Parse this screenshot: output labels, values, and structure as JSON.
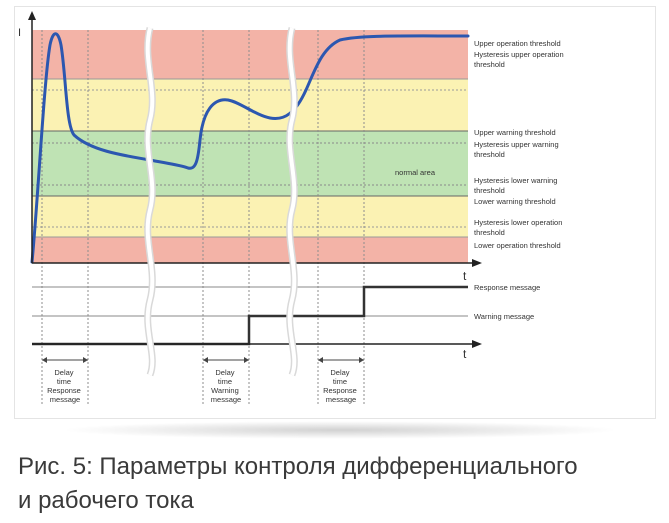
{
  "colors": {
    "operation_zone": "#f3b3a7",
    "warning_zone": "#fbf2b3",
    "normal_zone": "#bfe3b4",
    "curve": "#2c57b0",
    "message_line": "#333333"
  },
  "axes": {
    "y_label": "I",
    "x_label_top": "t",
    "x_label_bottom": "t"
  },
  "zones": {
    "normal_label": "normal area"
  },
  "threshold_labels": [
    "Upper operation threshold",
    "Hysteresis upper operation threshold",
    "Upper warning threshold",
    "Hysteresis upper warning threshold",
    "Hysteresis lower warning threshold",
    "Lower warning threshold",
    "Hysteresis lower operation threshold",
    "Lower operation threshold"
  ],
  "message_labels": {
    "response": "Response message",
    "warning": "Warning message"
  },
  "delay_labels": [
    [
      "Delay",
      "time",
      "Response",
      "message"
    ],
    [
      "Delay",
      "time",
      "Warning",
      "message"
    ],
    [
      "Delay",
      "time",
      "Response",
      "message"
    ]
  ],
  "caption": {
    "line1": "Рис. 5: Параметры контроля дифференциального",
    "line2": "и рабочего тока"
  }
}
